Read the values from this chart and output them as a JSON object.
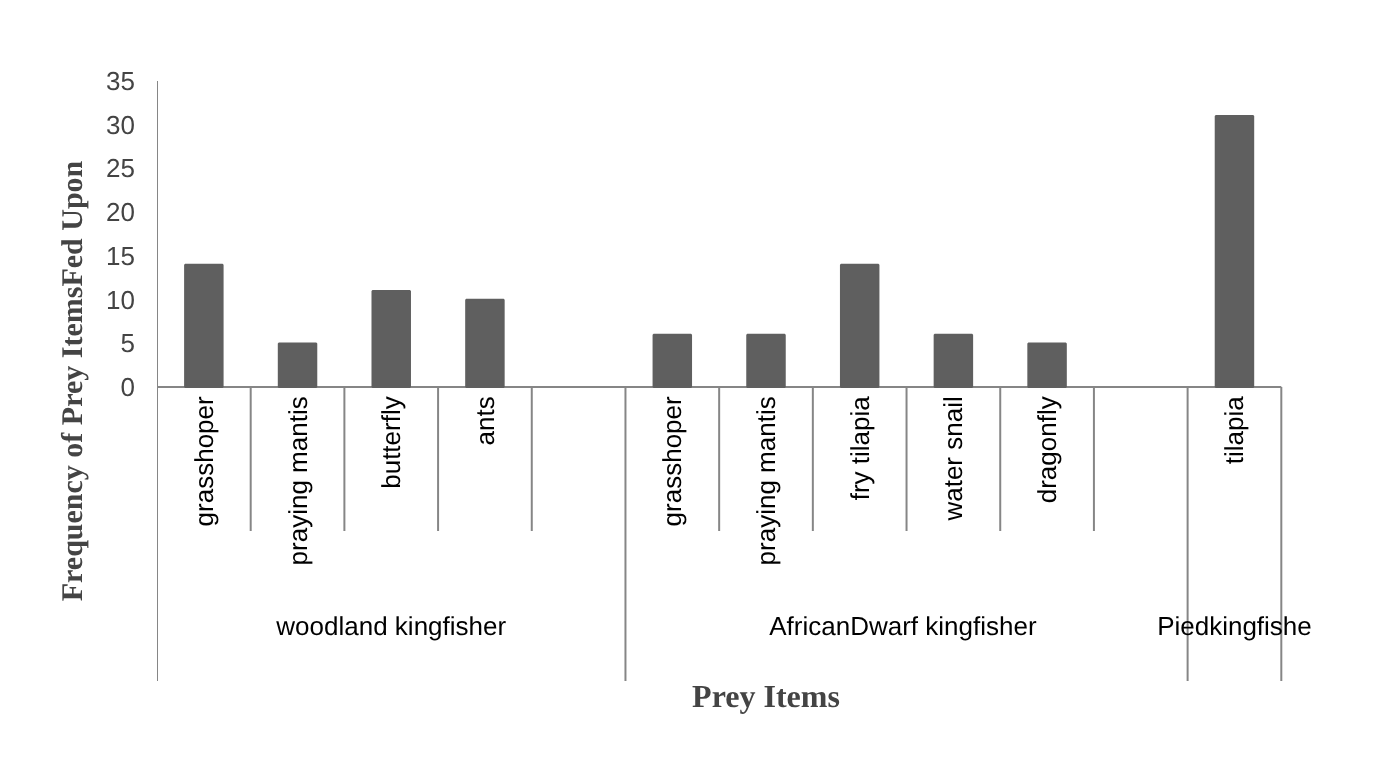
{
  "chart_data": {
    "type": "bar",
    "xlabel": "Prey Items",
    "ylabel": "Frequency of Prey ItemsFed Upon",
    "categories": [
      "grasshoper",
      "praying mantis",
      "butterfly",
      "ants",
      null,
      "grasshoper",
      "praying mantis",
      "fry tilapia",
      "water snail",
      "dragonfly",
      null,
      "tilapia"
    ],
    "values": [
      14,
      5,
      11,
      10,
      null,
      6,
      6,
      14,
      6,
      5,
      null,
      31
    ],
    "color": "#5f5f5f",
    "ylim": [
      0,
      35
    ],
    "yticks": [
      0,
      5,
      10,
      15,
      20,
      25,
      30,
      35
    ],
    "annotations": [
      "woodland kingfisher",
      "AfricanDwarf  kingfisher",
      "Piedkingfishe"
    ]
  }
}
